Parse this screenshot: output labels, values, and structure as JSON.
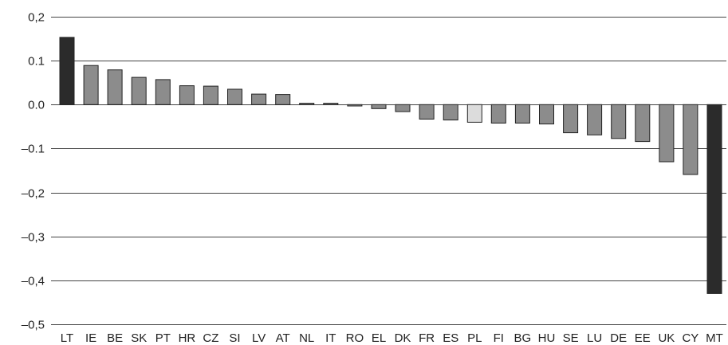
{
  "chart_data": {
    "type": "bar",
    "title": "",
    "xlabel": "",
    "ylabel": "",
    "ylim": [
      -0.5,
      0.2
    ],
    "yticks": [
      0.2,
      0.1,
      0.0,
      -0.1,
      -0.2,
      -0.3,
      -0.4,
      -0.5
    ],
    "ytick_labels": [
      "0,2",
      "0.1",
      "0.0",
      "–0.1",
      "–0,2",
      "–0,3",
      "–0,4",
      "–0,5"
    ],
    "grid": true,
    "categories": [
      "LT",
      "IE",
      "BE",
      "SK",
      "PT",
      "HR",
      "CZ",
      "SI",
      "LV",
      "AT",
      "NL",
      "IT",
      "RO",
      "EL",
      "DK",
      "FR",
      "ES",
      "PL",
      "FI",
      "BG",
      "HU",
      "SE",
      "LU",
      "DE",
      "EE",
      "UK",
      "CY",
      "MT"
    ],
    "values": [
      0.153,
      0.089,
      0.079,
      0.062,
      0.057,
      0.043,
      0.042,
      0.035,
      0.024,
      0.023,
      0.003,
      0.003,
      -0.003,
      -0.009,
      -0.016,
      -0.033,
      -0.035,
      -0.04,
      -0.042,
      -0.042,
      -0.044,
      -0.064,
      -0.069,
      -0.077,
      -0.084,
      -0.13,
      -0.159,
      -0.43
    ],
    "highlight": {
      "LT": "#2b2b2b",
      "MT": "#2b2b2b",
      "PL": "#dcdcdc"
    },
    "bar_color": "#8c8c8c"
  }
}
